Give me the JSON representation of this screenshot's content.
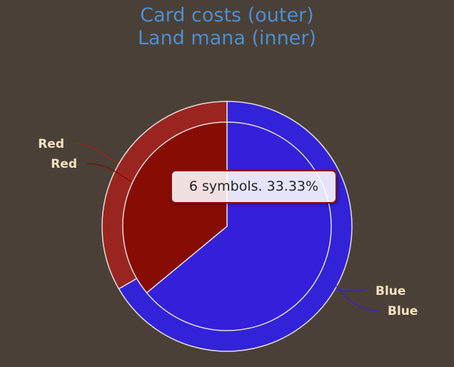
{
  "title": {
    "line1": "Card costs (outer)",
    "line2": "Land mana (inner)"
  },
  "tooltip": {
    "text": "6 symbols. 33.33%"
  },
  "chart_data": {
    "type": "pie",
    "title": "Card costs (outer) Land mana (inner)",
    "rings": [
      {
        "name": "Card costs",
        "position": "outer",
        "slices": [
          {
            "label": "Blue",
            "value": 12,
            "color": "#3223d8"
          },
          {
            "label": "Red",
            "value": 6,
            "color": "#9a2520"
          }
        ]
      },
      {
        "name": "Land mana",
        "position": "inner",
        "slices": [
          {
            "label": "Blue",
            "value": 16,
            "color": "#3420da"
          },
          {
            "label": "Red",
            "value": 9,
            "color": "#860c04"
          }
        ]
      }
    ],
    "tooltip_value": "6 symbols. 33.33%",
    "legend": "none"
  }
}
